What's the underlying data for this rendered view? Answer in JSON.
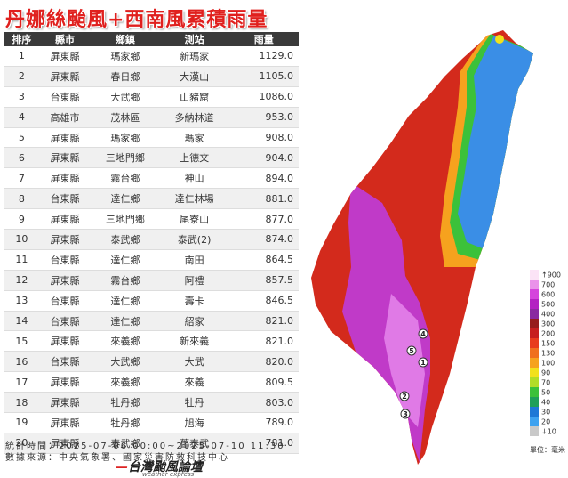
{
  "header": {
    "title": "丹娜絲颱風+西南風累積雨量"
  },
  "table": {
    "columns": [
      "排序",
      "縣市",
      "鄉鎮",
      "測站",
      "雨量"
    ],
    "rows": [
      [
        "1",
        "屏東縣",
        "瑪家鄉",
        "新瑪家",
        "1129.0"
      ],
      [
        "2",
        "屏東縣",
        "春日鄉",
        "大漢山",
        "1105.0"
      ],
      [
        "3",
        "台東縣",
        "大武鄉",
        "山豬窟",
        "1086.0"
      ],
      [
        "4",
        "高雄市",
        "茂林區",
        "多納林道",
        "953.0"
      ],
      [
        "5",
        "屏東縣",
        "瑪家鄉",
        "瑪家",
        "908.0"
      ],
      [
        "6",
        "屏東縣",
        "三地門鄉",
        "上德文",
        "904.0"
      ],
      [
        "7",
        "屏東縣",
        "霧台鄉",
        "神山",
        "894.0"
      ],
      [
        "8",
        "台東縣",
        "達仁鄉",
        "達仁林場",
        "881.0"
      ],
      [
        "9",
        "屏東縣",
        "三地門鄉",
        "尾寮山",
        "877.0"
      ],
      [
        "10",
        "屏東縣",
        "泰武鄉",
        "泰武(2)",
        "874.0"
      ],
      [
        "11",
        "台東縣",
        "達仁鄉",
        "南田",
        "864.5"
      ],
      [
        "12",
        "屏東縣",
        "霧台鄉",
        "阿禮",
        "857.5"
      ],
      [
        "13",
        "台東縣",
        "達仁鄉",
        "壽卡",
        "846.5"
      ],
      [
        "14",
        "台東縣",
        "達仁鄉",
        "紹家",
        "821.0"
      ],
      [
        "15",
        "屏東縣",
        "來義鄉",
        "新來義",
        "821.0"
      ],
      [
        "16",
        "台東縣",
        "大武鄉",
        "大武",
        "820.0"
      ],
      [
        "17",
        "屏東縣",
        "來義鄉",
        "來義",
        "809.5"
      ],
      [
        "18",
        "屏東縣",
        "牡丹鄉",
        "牡丹",
        "803.0"
      ],
      [
        "19",
        "屏東縣",
        "牡丹鄉",
        "旭海",
        "789.0"
      ],
      [
        "20",
        "屏東縣",
        "泰武鄉",
        "舊泰武",
        "781.0"
      ]
    ]
  },
  "footer": {
    "period": "統計時間：2025-07-06 00:00~2025-07-10 11:30",
    "source": "數據來源：中央氣象署、國家災害防救科技中心"
  },
  "logo": {
    "name": "台灣颱風論壇",
    "subtitle": "weather express"
  },
  "map": {
    "markers": [
      {
        "label": "4"
      },
      {
        "label": "5"
      },
      {
        "label": "1"
      },
      {
        "label": "2"
      },
      {
        "label": "3"
      }
    ],
    "legend": {
      "items": [
        {
          "label": "↑900",
          "color": "#fbe3f6"
        },
        {
          "label": "700",
          "color": "#ea92ea"
        },
        {
          "label": "600",
          "color": "#d545dc"
        },
        {
          "label": "500",
          "color": "#b322c2"
        },
        {
          "label": "400",
          "color": "#8a2aa0"
        },
        {
          "label": "300",
          "color": "#971c1c"
        },
        {
          "label": "200",
          "color": "#c71f1f"
        },
        {
          "label": "150",
          "color": "#e83c1e"
        },
        {
          "label": "130",
          "color": "#f0701e"
        },
        {
          "label": "100",
          "color": "#f6a21e"
        },
        {
          "label": "90",
          "color": "#f2e11c"
        },
        {
          "label": "70",
          "color": "#b2dd27"
        },
        {
          "label": "50",
          "color": "#3cc13a"
        },
        {
          "label": "40",
          "color": "#1f9f5a"
        },
        {
          "label": "30",
          "color": "#1e78d6"
        },
        {
          "label": "20",
          "color": "#3ea2f0"
        },
        {
          "label": "↓10",
          "color": "#c9c9c9"
        }
      ],
      "unit": "單位：毫米"
    }
  }
}
